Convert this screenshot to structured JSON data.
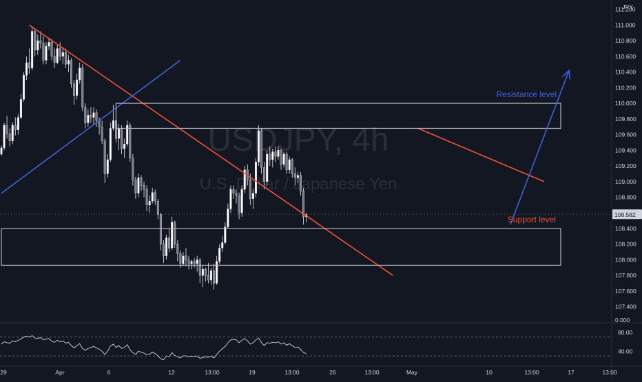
{
  "chart_data": {
    "type": "candlestick",
    "symbol": "USDJPY",
    "timeframe": "4h",
    "watermark_symbol": "USDJPY, 4h",
    "watermark_name": "U.S. Dollar / Japanese Yen",
    "currency": "JPY",
    "last_price": "108.582",
    "y_ticks": [
      "111.200",
      "111.000",
      "110.800",
      "110.600",
      "110.400",
      "110.200",
      "110.000",
      "109.800",
      "109.600",
      "109.400",
      "109.200",
      "109.000",
      "108.800",
      "108.600",
      "108.400",
      "108.200",
      "108.000",
      "107.800",
      "107.600",
      "107.400"
    ],
    "x_ticks": [
      "29",
      "Apr",
      "6",
      "12",
      "13:00",
      "19",
      "13:00",
      "26",
      "13:00",
      "May",
      "10",
      "13:00",
      "17",
      "13:00"
    ],
    "ylim": [
      107.3,
      111.25
    ],
    "candles": [
      [
        109.35,
        109.46,
        109.33,
        109.43
      ],
      [
        109.43,
        109.75,
        109.4,
        109.72
      ],
      [
        109.72,
        109.84,
        109.55,
        109.61
      ],
      [
        109.61,
        109.68,
        109.45,
        109.52
      ],
      [
        109.52,
        109.76,
        109.48,
        109.72
      ],
      [
        109.72,
        109.82,
        109.59,
        109.66
      ],
      [
        109.66,
        109.86,
        109.6,
        109.82
      ],
      [
        109.82,
        110.12,
        109.8,
        110.05
      ],
      [
        110.05,
        110.4,
        110.02,
        110.36
      ],
      [
        110.36,
        110.6,
        110.3,
        110.52
      ],
      [
        110.52,
        110.7,
        110.38,
        110.45
      ],
      [
        110.45,
        110.98,
        110.42,
        110.92
      ],
      [
        110.92,
        110.95,
        110.6,
        110.68
      ],
      [
        110.68,
        110.88,
        110.62,
        110.8
      ],
      [
        110.8,
        110.92,
        110.7,
        110.77
      ],
      [
        110.77,
        110.86,
        110.5,
        110.55
      ],
      [
        110.55,
        110.78,
        110.5,
        110.73
      ],
      [
        110.73,
        110.84,
        110.68,
        110.78
      ],
      [
        110.78,
        110.82,
        110.55,
        110.6
      ],
      [
        110.6,
        110.7,
        110.45,
        110.52
      ],
      [
        110.52,
        110.75,
        110.5,
        110.7
      ],
      [
        110.7,
        110.78,
        110.55,
        110.6
      ],
      [
        110.6,
        110.72,
        110.5,
        110.65
      ],
      [
        110.65,
        110.7,
        110.45,
        110.5
      ],
      [
        110.5,
        110.62,
        110.4,
        110.55
      ],
      [
        110.55,
        110.58,
        110.2,
        110.25
      ],
      [
        110.25,
        110.3,
        109.98,
        110.1
      ],
      [
        110.1,
        110.38,
        110.05,
        110.3
      ],
      [
        110.3,
        110.52,
        110.25,
        110.45
      ],
      [
        110.45,
        110.5,
        109.9,
        109.95
      ],
      [
        109.95,
        110.0,
        109.68,
        109.75
      ],
      [
        109.75,
        109.92,
        109.7,
        109.85
      ],
      [
        109.85,
        109.95,
        109.75,
        109.82
      ],
      [
        109.82,
        109.95,
        109.72,
        109.88
      ],
      [
        109.88,
        109.92,
        109.7,
        109.78
      ],
      [
        109.78,
        109.82,
        109.6,
        109.7
      ],
      [
        109.7,
        109.78,
        109.48,
        109.52
      ],
      [
        109.52,
        109.55,
        108.98,
        109.1
      ],
      [
        109.1,
        109.35,
        109.05,
        109.28
      ],
      [
        109.28,
        109.75,
        109.25,
        109.68
      ],
      [
        109.68,
        109.98,
        109.65,
        109.78
      ],
      [
        109.78,
        109.88,
        109.5,
        109.55
      ],
      [
        109.55,
        109.74,
        109.4,
        109.68
      ],
      [
        109.68,
        109.72,
        109.35,
        109.42
      ],
      [
        109.42,
        109.55,
        109.3,
        109.48
      ],
      [
        109.48,
        109.78,
        109.45,
        109.72
      ],
      [
        109.72,
        109.75,
        109.25,
        109.3
      ],
      [
        109.3,
        109.35,
        108.95,
        109.02
      ],
      [
        109.02,
        109.06,
        108.78,
        108.85
      ],
      [
        108.85,
        109.1,
        108.8,
        109.05
      ],
      [
        109.05,
        109.08,
        108.88,
        108.95
      ],
      [
        108.95,
        109.0,
        108.8,
        108.9
      ],
      [
        108.9,
        108.95,
        108.62,
        108.7
      ],
      [
        108.7,
        108.82,
        108.6,
        108.75
      ],
      [
        108.75,
        108.92,
        108.72,
        108.86
      ],
      [
        108.86,
        108.9,
        108.7,
        108.75
      ],
      [
        108.75,
        108.78,
        108.52,
        108.58
      ],
      [
        108.58,
        108.6,
        108.12,
        108.2
      ],
      [
        108.2,
        108.25,
        107.96,
        108.05
      ],
      [
        108.05,
        108.32,
        108.0,
        108.28
      ],
      [
        108.28,
        108.4,
        108.1,
        108.15
      ],
      [
        108.15,
        108.55,
        108.12,
        108.48
      ],
      [
        108.48,
        108.5,
        108.15,
        108.2
      ],
      [
        108.2,
        108.25,
        107.98,
        108.08
      ],
      [
        108.08,
        108.12,
        107.9,
        107.95
      ],
      [
        107.95,
        108.1,
        107.92,
        108.05
      ],
      [
        108.05,
        108.15,
        107.92,
        108.0
      ],
      [
        108.0,
        108.05,
        107.88,
        107.95
      ],
      [
        107.95,
        108.0,
        107.88,
        107.98
      ],
      [
        107.98,
        108.02,
        107.9,
        107.95
      ],
      [
        107.95,
        108.05,
        107.85,
        108.0
      ],
      [
        108.0,
        108.02,
        107.7,
        107.8
      ],
      [
        107.8,
        107.92,
        107.65,
        107.88
      ],
      [
        107.88,
        107.9,
        107.72,
        107.8
      ],
      [
        107.8,
        107.96,
        107.7,
        107.74
      ],
      [
        107.74,
        107.9,
        107.68,
        107.86
      ],
      [
        107.86,
        107.95,
        107.62,
        107.7
      ],
      [
        107.7,
        108.05,
        107.68,
        107.98
      ],
      [
        107.98,
        108.2,
        107.95,
        108.15
      ],
      [
        108.15,
        108.3,
        108.1,
        108.22
      ],
      [
        108.22,
        108.48,
        108.2,
        108.42
      ],
      [
        108.42,
        108.72,
        108.4,
        108.65
      ],
      [
        108.65,
        108.95,
        108.6,
        108.9
      ],
      [
        108.9,
        108.95,
        108.78,
        108.85
      ],
      [
        108.85,
        108.9,
        108.72,
        108.82
      ],
      [
        108.82,
        108.86,
        108.52,
        108.6
      ],
      [
        108.6,
        108.95,
        108.55,
        108.9
      ],
      [
        108.9,
        109.2,
        108.85,
        109.15
      ],
      [
        109.15,
        109.22,
        108.95,
        109.02
      ],
      [
        109.02,
        109.1,
        108.7,
        108.78
      ],
      [
        108.78,
        108.9,
        108.65,
        108.85
      ],
      [
        108.85,
        109.3,
        108.8,
        109.25
      ],
      [
        109.25,
        109.72,
        109.2,
        109.65
      ],
      [
        109.65,
        109.68,
        109.1,
        109.18
      ],
      [
        109.18,
        109.25,
        108.9,
        109.0
      ],
      [
        109.0,
        109.4,
        108.95,
        109.35
      ],
      [
        109.35,
        109.45,
        109.2,
        109.28
      ],
      [
        109.28,
        109.42,
        109.18,
        109.38
      ],
      [
        109.38,
        109.45,
        109.25,
        109.32
      ],
      [
        109.32,
        109.45,
        109.28,
        109.4
      ],
      [
        109.4,
        109.42,
        109.15,
        109.22
      ],
      [
        109.22,
        109.38,
        109.18,
        109.35
      ],
      [
        109.35,
        109.38,
        109.1,
        109.15
      ],
      [
        109.15,
        109.32,
        109.1,
        109.28
      ],
      [
        109.28,
        109.3,
        109.05,
        109.1
      ],
      [
        109.1,
        109.18,
        108.95,
        109.05
      ],
      [
        109.05,
        109.12,
        108.98,
        109.08
      ],
      [
        109.08,
        109.12,
        108.82,
        108.88
      ],
      [
        108.88,
        108.92,
        108.45,
        108.55
      ],
      [
        108.55,
        108.6,
        108.48,
        108.58
      ]
    ],
    "drawings": [
      {
        "type": "trendline",
        "color": "#f0522e",
        "from": [
          10,
          111.0
        ],
        "to": [
          140,
          107.8
        ]
      },
      {
        "type": "trendline",
        "color": "#3d63d8",
        "from": [
          0,
          108.85
        ],
        "to": [
          64,
          110.55
        ]
      },
      {
        "type": "trendline",
        "color": "#f0522e",
        "from": [
          149,
          109.68
        ],
        "to": [
          194,
          109.0
        ]
      },
      {
        "type": "rectangle",
        "color": "#b2b5be",
        "from": [
          41,
          110.0
        ],
        "to": [
          200,
          109.68
        ]
      },
      {
        "type": "rectangle",
        "color": "#b2b5be",
        "from": [
          0,
          108.4
        ],
        "to": [
          200,
          107.93
        ]
      },
      {
        "type": "arrow",
        "color": "#3d63d8",
        "from": [
          182,
          108.45
        ],
        "to": [
          203,
          110.42
        ]
      }
    ],
    "annotations": [
      {
        "text": "Resistance level",
        "color": "#3d63d8",
        "at": [
          177,
          110.08
        ]
      },
      {
        "text": "Support level",
        "color": "#f0522e",
        "at": [
          181,
          108.48
        ]
      }
    ],
    "rsi": {
      "values": [
        55,
        60,
        58,
        57,
        62,
        60,
        63,
        66,
        70,
        72,
        70,
        73,
        68,
        67,
        69,
        64,
        66,
        67,
        61,
        59,
        63,
        60,
        62,
        57,
        59,
        52,
        47,
        52,
        56,
        46,
        42,
        46,
        48,
        50,
        47,
        44,
        40,
        33,
        40,
        51,
        55,
        48,
        52,
        46,
        48,
        54,
        43,
        37,
        33,
        40,
        38,
        36,
        32,
        34,
        38,
        35,
        30,
        24,
        22,
        30,
        28,
        37,
        31,
        28,
        26,
        30,
        30,
        28,
        29,
        28,
        30,
        25,
        27,
        28,
        27,
        29,
        26,
        33,
        40,
        45,
        50,
        58,
        64,
        65,
        64,
        58,
        63,
        67,
        62,
        55,
        58,
        64,
        68,
        58,
        52,
        58,
        57,
        59,
        58,
        60,
        55,
        58,
        53,
        56,
        52,
        48,
        49,
        44,
        37,
        35
      ],
      "dashed_levels": [
        70,
        30
      ],
      "ticks": [
        "80.00",
        "40.00"
      ],
      "range": [
        20,
        90
      ]
    }
  }
}
